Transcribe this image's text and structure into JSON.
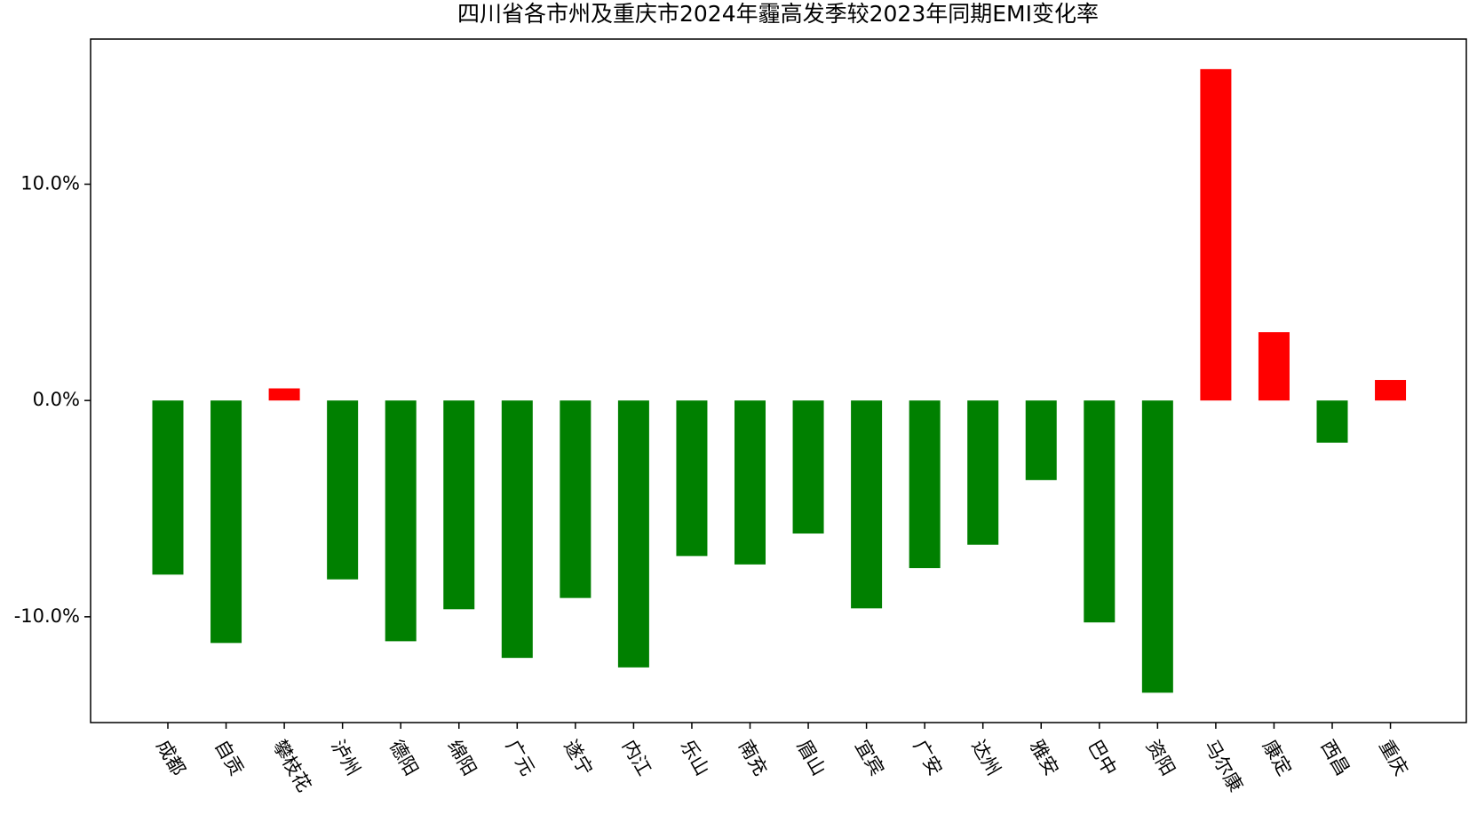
{
  "chart_data": {
    "type": "bar",
    "title": "四川省各市州及重庆市2024年霾高发季较2023年同期EMI变化率",
    "categories": [
      "成都",
      "自贡",
      "攀枝花",
      "泸州",
      "德阳",
      "绵阳",
      "广元",
      "遂宁",
      "内江",
      "乐山",
      "南充",
      "眉山",
      "宜宾",
      "广安",
      "达州",
      "雅安",
      "巴中",
      "资阳",
      "马尔康",
      "康定",
      "西昌",
      "重庆"
    ],
    "values": [
      -8.05,
      -11.21,
      0.56,
      -8.27,
      -11.13,
      -9.65,
      -11.9,
      -9.13,
      -12.34,
      -7.19,
      -7.58,
      -6.15,
      -9.61,
      -7.75,
      -6.67,
      -3.68,
      -10.26,
      -13.51,
      15.32,
      3.16,
      -1.95,
      0.95
    ],
    "colors": [
      "#008000",
      "#008000",
      "#ff0000",
      "#008000",
      "#008000",
      "#008000",
      "#008000",
      "#008000",
      "#008000",
      "#008000",
      "#008000",
      "#008000",
      "#008000",
      "#008000",
      "#008000",
      "#008000",
      "#008000",
      "#008000",
      "#ff0000",
      "#ff0000",
      "#008000",
      "#ff0000"
    ],
    "ylim": [
      -14.89,
      16.71
    ],
    "yticks": [
      {
        "value": -10,
        "label": "-10.0%"
      },
      {
        "value": 0,
        "label": "0.0%"
      },
      {
        "value": 10,
        "label": "10.0%"
      }
    ],
    "grid": false
  }
}
